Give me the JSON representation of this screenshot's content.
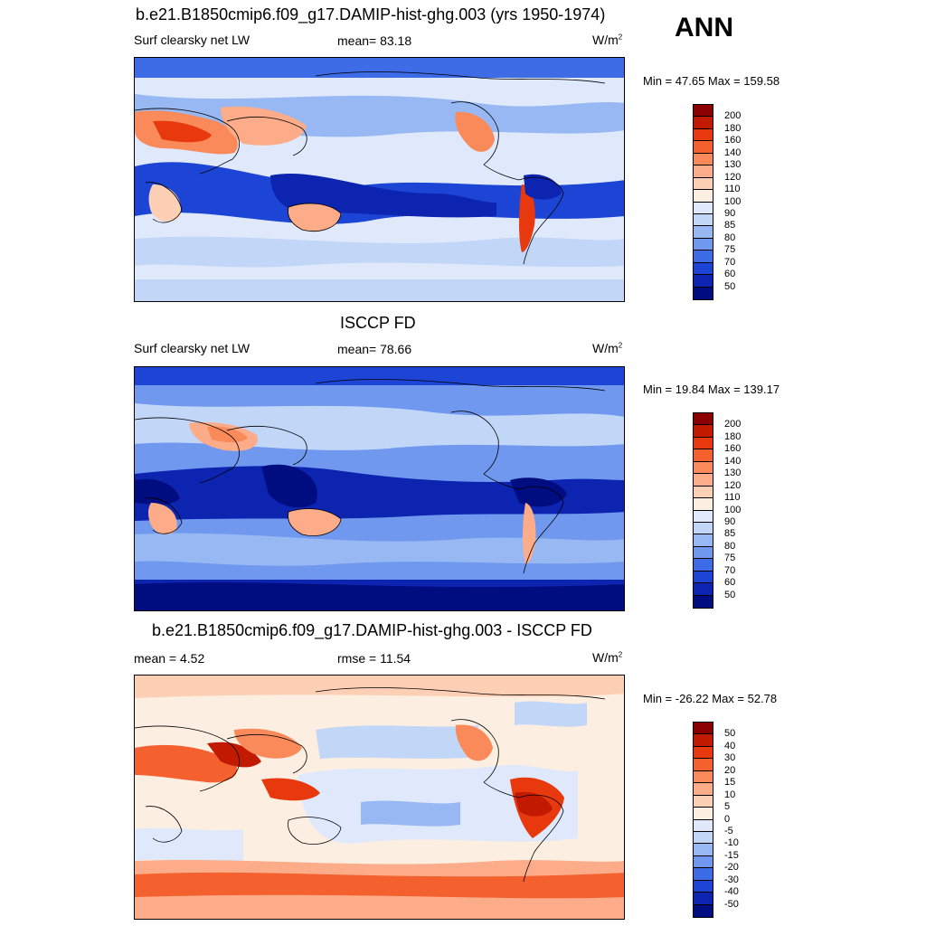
{
  "season": "ANN",
  "units_base": "W/m",
  "units_exp": "2",
  "panel1": {
    "title": "b.e21.B1850cmip6.f09_g17.DAMIP-hist-ghg.003 (yrs 1950-1974)",
    "variable": "Surf clearsky net LW",
    "mean": "mean=  83.18",
    "minmax": "Min =  47.65 Max = 159.58"
  },
  "panel2": {
    "title": "ISCCP FD",
    "variable": "Surf clearsky net LW",
    "mean": "mean=  78.66",
    "minmax": "Min =  19.84 Max = 139.17"
  },
  "panel3": {
    "title": "b.e21.B1850cmip6.f09_g17.DAMIP-hist-ghg.003 - ISCCP FD",
    "mean": "mean =   4.52",
    "rmse": "rmse =  11.54",
    "minmax": "Min = -26.22 Max =  52.78"
  },
  "colorbar_abs": {
    "levels": [
      "200",
      "180",
      "160",
      "140",
      "130",
      "120",
      "110",
      "100",
      "90",
      "85",
      "80",
      "75",
      "70",
      "60",
      "50"
    ],
    "colors": [
      "#8b0000",
      "#c21a00",
      "#e8380d",
      "#f4602e",
      "#fa8a5a",
      "#fcac88",
      "#fdd0b6",
      "#fdeee2",
      "#dfe9fb",
      "#c2d6f8",
      "#97b8f3",
      "#6f98ee",
      "#3d6ce6",
      "#1c45d6",
      "#0c24b0",
      "#000d80"
    ]
  },
  "colorbar_diff": {
    "levels": [
      "50",
      "40",
      "30",
      "20",
      "15",
      "10",
      "5",
      "0",
      "-5",
      "-10",
      "-15",
      "-20",
      "-30",
      "-40",
      "-50"
    ],
    "colors": [
      "#8b0000",
      "#c21a00",
      "#e8380d",
      "#f4602e",
      "#fa8a5a",
      "#fcac88",
      "#fdd0b6",
      "#fdeee2",
      "#dfe9fb",
      "#c2d6f8",
      "#97b8f3",
      "#6f98ee",
      "#3d6ce6",
      "#1c45d6",
      "#0c24b0",
      "#000d80"
    ]
  }
}
